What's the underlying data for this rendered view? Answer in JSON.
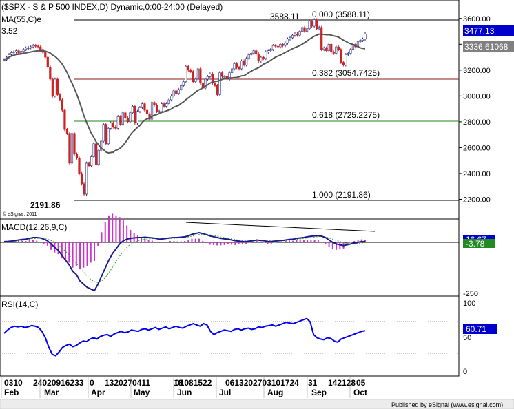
{
  "price_panel": {
    "title": "($SPX - S & P 500 INDEX,D) Dynamic,0:00-24:00 (Delayed)",
    "ma_label": "MA(55,C)e",
    "ma_value_left": "3.52",
    "high_label": "3588.11",
    "low_label": "2191.86",
    "last_price_box": "3477.13",
    "ma_value_box": "3336.61068",
    "source": "© eSignal, 2011",
    "fib_labels": [
      {
        "text": "0.000 (3588.11)",
        "color": "#000000"
      },
      {
        "text": "0.382 (3054.7425)",
        "color": "#8b1a1a"
      },
      {
        "text": "0.618 (2725.2275)",
        "color": "#1a8a1a"
      },
      {
        "text": "1.000 (2191.86)",
        "color": "#000000"
      }
    ]
  },
  "macd_panel": {
    "title": "MACD(12,26,9,C)",
    "value_box_1": "16.67",
    "value_box_2": "-3.78",
    "tick_label": "-250"
  },
  "rsi_panel": {
    "title": "RSI(14,C)",
    "value_box": "60.71"
  },
  "date_axis": {
    "day_row": "0310 24020916233 0 1320270411 18 01081522 0613202703101724 31 142128 05",
    "day_labels": [
      {
        "text": "0310",
        "offset": 0
      },
      {
        "text": "24020916233",
        "offset": 1
      },
      {
        "text": "0",
        "offset": 2
      }
    ],
    "months": [
      "Feb",
      "Mar",
      "Apr",
      "May",
      "Jun",
      "Jul",
      "Aug",
      "Sep",
      "Oct"
    ]
  },
  "footer": "Published by eSignal (www.esignal.com)",
  "colors": {
    "candle_up": "#2b2b80",
    "candle_down": "#cc2222",
    "ma_line": "#555555",
    "fib_0382": "#8b1a1a",
    "fib_0618": "#1a8a1a",
    "macd_line": "#1a1a8c",
    "signal_line": "#2fa02f",
    "histogram": "#cc33cc",
    "rsi_line": "#0000ee",
    "box_blue": "#0000cc",
    "box_green": "#228b22",
    "box_gray": "#808080"
  },
  "chart_data": {
    "type": "candlestick",
    "symbol": "$SPX",
    "price_axis": {
      "ticks": [
        2200,
        2400,
        2600,
        2800,
        3000,
        3200,
        3400,
        3600
      ],
      "range": [
        2140,
        3680
      ]
    },
    "fibonacci": [
      {
        "level": 0.0,
        "price": 3588.11
      },
      {
        "level": 0.382,
        "price": 3054.7425
      },
      {
        "level": 0.618,
        "price": 2725.2275
      },
      {
        "level": 1.0,
        "price": 2191.86
      }
    ],
    "closes": [
      3280,
      3300,
      3320,
      3335,
      3340,
      3350,
      3330,
      3345,
      3360,
      3370,
      3373,
      3380,
      3390,
      3386,
      3380,
      3360,
      3337,
      3300,
      3225,
      3130,
      3000,
      3130,
      3010,
      2970,
      2890,
      2740,
      2710,
      2480,
      2710,
      2550,
      2520,
      2400,
      2320,
      2240,
      2480,
      2460,
      2530,
      2630,
      2470,
      2580,
      2650,
      2780,
      2630,
      2750,
      2790,
      2760,
      2750,
      2840,
      2780,
      2870,
      2830,
      2800,
      2870,
      2920,
      2790,
      2880,
      2910,
      2940,
      2890,
      2860,
      2820,
      2950,
      2930,
      2880,
      2880,
      2940,
      2920,
      2940,
      2970,
      3000,
      3040,
      3020,
      3050,
      3080,
      3110,
      3230,
      3200,
      3190,
      3110,
      3130,
      3210,
      3100,
      3060,
      3130,
      3150,
      3170,
      3100,
      3080,
      3010,
      3180,
      3150,
      3150,
      3130,
      3180,
      3210,
      3250,
      3220,
      3210,
      3270,
      3240,
      3290,
      3320,
      3330,
      3350,
      3325,
      3270,
      3300,
      3290,
      3340,
      3350,
      3360,
      3390,
      3385,
      3380,
      3400,
      3390,
      3410,
      3440,
      3450,
      3470,
      3480,
      3470,
      3500,
      3530,
      3500,
      3520,
      3580,
      3540,
      3590,
      3520,
      3530,
      3360,
      3370,
      3350,
      3400,
      3340,
      3330,
      3380,
      3360,
      3260,
      3240,
      3320,
      3330,
      3360,
      3400,
      3380,
      3420,
      3430,
      3440,
      3480
    ]
  },
  "macd_data": {
    "macd": [
      5,
      6,
      8,
      12,
      15,
      18,
      20,
      25,
      30,
      30,
      28,
      20,
      10,
      -10,
      -30,
      -50,
      -80,
      -110,
      -140,
      -180,
      -200,
      -240,
      -260,
      -280,
      -290,
      -300,
      -260,
      -210,
      -160,
      -110,
      -70,
      -40,
      -10,
      10,
      20,
      25,
      28,
      30,
      30,
      32,
      30,
      28,
      25,
      20,
      22,
      25,
      28,
      30,
      30,
      32,
      35,
      40,
      50,
      55,
      60,
      55,
      48,
      40,
      35,
      30,
      25,
      22,
      20,
      15,
      10,
      8,
      5,
      5,
      8,
      10,
      15,
      12,
      10,
      5,
      5,
      8,
      10,
      12,
      15,
      18,
      20,
      25,
      28,
      30,
      35,
      38,
      40,
      42,
      38,
      30,
      15,
      0,
      -10,
      -15,
      -20,
      -15,
      -10,
      -5,
      0,
      5,
      5
    ],
    "signal": [
      3,
      4,
      5,
      7,
      10,
      13,
      16,
      19,
      23,
      25,
      26,
      24,
      20,
      12,
      0,
      -15,
      -35,
      -55,
      -80,
      -105,
      -130,
      -160,
      -185,
      -210,
      -230,
      -245,
      -250,
      -240,
      -220,
      -190,
      -155,
      -120,
      -85,
      -55,
      -30,
      -12,
      0,
      10,
      16,
      20,
      22,
      23,
      23,
      22,
      22,
      23,
      24,
      26,
      27,
      29,
      31,
      34,
      39,
      44,
      49,
      51,
      50,
      47,
      43,
      39,
      34,
      30,
      26,
      22,
      18,
      14,
      11,
      9,
      9,
      9,
      11,
      11,
      11,
      10,
      9,
      9,
      9,
      10,
      11,
      13,
      15,
      18,
      21,
      24,
      27,
      30,
      33,
      36,
      36,
      34,
      28,
      20,
      12,
      5,
      -2,
      -6,
      -9,
      -9,
      -7,
      -4,
      -2
    ]
  },
  "rsi_data": {
    "values": [
      57,
      62,
      66,
      68,
      67,
      68,
      66,
      67,
      69,
      68,
      66,
      60,
      50,
      35,
      24,
      22,
      28,
      35,
      38,
      40,
      36,
      38,
      42,
      45,
      44,
      48,
      50,
      48,
      52,
      54,
      55,
      52,
      56,
      58,
      60,
      58,
      59,
      62,
      61,
      60,
      63,
      64,
      62,
      64,
      66,
      63,
      65,
      67,
      64,
      66,
      68,
      66,
      65,
      68,
      70,
      72,
      70,
      68,
      72,
      70,
      60,
      55,
      58,
      60,
      62,
      61,
      60,
      63,
      64,
      62,
      64,
      65,
      63,
      64,
      67,
      66,
      68,
      69,
      70,
      68,
      70,
      72,
      74,
      73,
      72,
      74,
      76,
      78,
      80,
      75,
      55,
      50,
      48,
      47,
      50,
      49,
      45,
      43,
      48,
      50,
      52,
      54,
      56,
      58,
      60,
      61
    ]
  }
}
